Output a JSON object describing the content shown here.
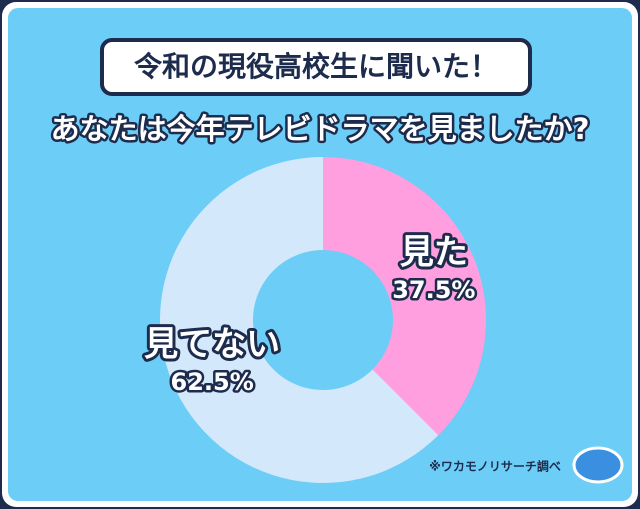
{
  "chart_data": {
    "type": "donut",
    "title": "令和の現役高校生に聞いた！",
    "subtitle": "あなたは今年テレビドラマを見ましたか?",
    "categories": [
      "見た",
      "見てない"
    ],
    "values": [
      37.5,
      62.5
    ],
    "value_labels": [
      "37.5%",
      "62.5%"
    ],
    "colors": [
      "#ff9fe0",
      "#d3e8fb"
    ],
    "source": "※ワカモノリサーチ調べ"
  }
}
